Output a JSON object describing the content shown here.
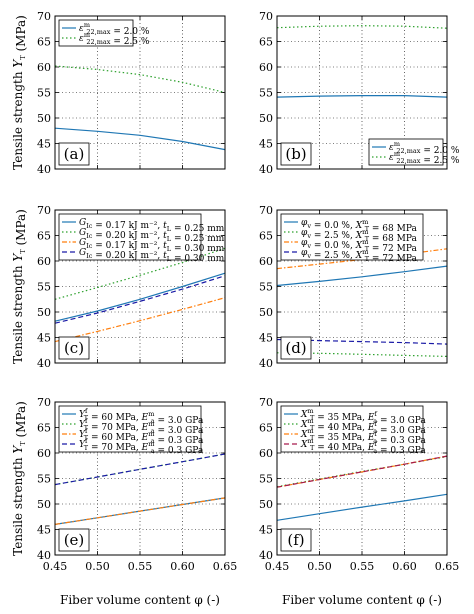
{
  "figure": {
    "ylabel": "Tensile strength Y_T (MPa)",
    "xlabel": "Fiber volume content φ (-)"
  },
  "chart_data": [
    {
      "panel": "(a)",
      "type": "line",
      "xlim": [
        0.45,
        0.65
      ],
      "ylim": [
        40,
        70
      ],
      "xticks": [
        "0.45",
        "0.50",
        "0.55",
        "0.60",
        "0.65"
      ],
      "yticks": [
        "40",
        "45",
        "50",
        "55",
        "60",
        "65",
        "70"
      ],
      "grid": true,
      "legend_position": "top-left",
      "series": [
        {
          "name": "ε^m_22,max = 2.0 %",
          "color": "#1f77b4",
          "dash": "solid",
          "x": [
            0.45,
            0.5,
            0.55,
            0.6,
            0.65
          ],
          "y": [
            48.0,
            47.4,
            46.6,
            45.4,
            43.8
          ]
        },
        {
          "name": "ε^m_22,max = 2.5 %",
          "color": "#2ca02c",
          "dash": "dotted",
          "x": [
            0.45,
            0.5,
            0.55,
            0.6,
            0.65
          ],
          "y": [
            60.2,
            59.5,
            58.5,
            57.0,
            55.0
          ]
        }
      ]
    },
    {
      "panel": "(b)",
      "type": "line",
      "xlim": [
        0.45,
        0.65
      ],
      "ylim": [
        40,
        70
      ],
      "xticks": [
        "0.45",
        "0.50",
        "0.55",
        "0.60",
        "0.65"
      ],
      "yticks": [
        "40",
        "45",
        "50",
        "55",
        "60",
        "65",
        "70"
      ],
      "grid": true,
      "legend_position": "bottom-right",
      "series": [
        {
          "name": "ε^m_22,max = 2.0 %",
          "color": "#1f77b4",
          "dash": "solid",
          "x": [
            0.45,
            0.5,
            0.55,
            0.6,
            0.65
          ],
          "y": [
            54.1,
            54.3,
            54.4,
            54.4,
            54.1
          ]
        },
        {
          "name": "ε^m_22,max = 2.5 %",
          "color": "#2ca02c",
          "dash": "dotted",
          "x": [
            0.45,
            0.5,
            0.55,
            0.6,
            0.65
          ],
          "y": [
            67.7,
            68.0,
            68.1,
            68.0,
            67.6
          ]
        }
      ]
    },
    {
      "panel": "(c)",
      "type": "line",
      "xlim": [
        0.45,
        0.65
      ],
      "ylim": [
        40,
        70
      ],
      "xticks": [
        "0.45",
        "0.50",
        "0.55",
        "0.60",
        "0.65"
      ],
      "yticks": [
        "40",
        "45",
        "50",
        "55",
        "60",
        "65",
        "70"
      ],
      "grid": true,
      "legend_position": "top-left",
      "series": [
        {
          "name": "G_Ic = 0.17 kJ m⁻², t_L = 0.25 mm",
          "color": "#1f77b4",
          "dash": "solid",
          "x": [
            0.45,
            0.5,
            0.55,
            0.6,
            0.65
          ],
          "y": [
            48.2,
            50.2,
            52.5,
            55.0,
            57.6
          ]
        },
        {
          "name": "G_Ic = 0.20 kJ m⁻², t_L = 0.25 mm",
          "color": "#2ca02c",
          "dash": "dotted",
          "x": [
            0.45,
            0.5,
            0.55,
            0.6,
            0.65
          ],
          "y": [
            52.5,
            54.8,
            57.2,
            59.7,
            62.5
          ]
        },
        {
          "name": "G_Ic = 0.17 kJ m⁻², t_L = 0.30 mm",
          "color": "#ff7f0e",
          "dash": "dashdot",
          "x": [
            0.45,
            0.5,
            0.55,
            0.6,
            0.65
          ],
          "y": [
            44.2,
            46.2,
            48.3,
            50.5,
            52.8
          ]
        },
        {
          "name": "G_Ic = 0.20 kJ m⁻², t_L = 0.30 mm",
          "color": "#1a1aa6",
          "dash": "dashed",
          "x": [
            0.45,
            0.5,
            0.55,
            0.6,
            0.65
          ],
          "y": [
            47.8,
            49.8,
            52.1,
            54.5,
            57.1
          ]
        }
      ]
    },
    {
      "panel": "(d)",
      "type": "line",
      "xlim": [
        0.45,
        0.65
      ],
      "ylim": [
        40,
        70
      ],
      "xticks": [
        "0.45",
        "0.50",
        "0.55",
        "0.60",
        "0.65"
      ],
      "yticks": [
        "40",
        "45",
        "50",
        "55",
        "60",
        "65",
        "70"
      ],
      "grid": true,
      "legend_position": "top-left",
      "series": [
        {
          "name": "φ_v = 0.0 %, X^m_T = 68 MPa",
          "color": "#1f77b4",
          "dash": "solid",
          "x": [
            0.45,
            0.5,
            0.55,
            0.6,
            0.65
          ],
          "y": [
            55.2,
            56.0,
            56.9,
            57.9,
            59.0
          ]
        },
        {
          "name": "φ_v = 2.5 %, X^m_T = 68 MPa",
          "color": "#2ca02c",
          "dash": "dotted",
          "x": [
            0.45,
            0.5,
            0.55,
            0.6,
            0.65
          ],
          "y": [
            42.0,
            41.9,
            41.7,
            41.5,
            41.3
          ]
        },
        {
          "name": "φ_v = 0.0 %, X^m_T = 72 MPa",
          "color": "#ff7f0e",
          "dash": "dashdot",
          "x": [
            0.45,
            0.5,
            0.55,
            0.6,
            0.65
          ],
          "y": [
            58.5,
            59.4,
            60.3,
            61.3,
            62.4
          ]
        },
        {
          "name": "φ_v = 2.5 %, X^m_T = 72 MPa",
          "color": "#1a1aa6",
          "dash": "dashed",
          "x": [
            0.45,
            0.5,
            0.55,
            0.6,
            0.65
          ],
          "y": [
            44.6,
            44.4,
            44.2,
            44.0,
            43.7
          ]
        }
      ]
    },
    {
      "panel": "(e)",
      "type": "line",
      "xlim": [
        0.45,
        0.65
      ],
      "ylim": [
        40,
        70
      ],
      "xticks": [
        "0.45",
        "0.50",
        "0.55",
        "0.60",
        "0.65"
      ],
      "yticks": [
        "40",
        "45",
        "50",
        "55",
        "60",
        "65",
        "70"
      ],
      "grid": true,
      "legend_position": "top-left",
      "series": [
        {
          "name": "Y^f_T = 60 MPa, E^m_a = 3.0 GPa",
          "color": "#1f77b4",
          "dash": "solid",
          "x": [
            0.45,
            0.5,
            0.55,
            0.6,
            0.65
          ],
          "y": [
            46.0,
            47.3,
            48.6,
            49.9,
            51.2
          ]
        },
        {
          "name": "Y^f_T = 70 MPa, E^m_a = 3.0 GPa",
          "color": "#2ca02c",
          "dash": "dotted",
          "x": [
            0.45,
            0.5,
            0.55,
            0.6,
            0.65
          ],
          "y": [
            53.8,
            55.3,
            56.8,
            58.3,
            59.8
          ]
        },
        {
          "name": "Y^f_T = 60 MPa, E^m_a = 0.3 GPa",
          "color": "#ff7f0e",
          "dash": "dashdot",
          "x": [
            0.45,
            0.5,
            0.55,
            0.6,
            0.65
          ],
          "y": [
            46.0,
            47.3,
            48.6,
            49.9,
            51.2
          ]
        },
        {
          "name": "Y^f_T = 70 MPa, E^m_a = 0.3 GPa",
          "color": "#1a1aa6",
          "dash": "dashed",
          "x": [
            0.45,
            0.5,
            0.55,
            0.6,
            0.65
          ],
          "y": [
            53.8,
            55.3,
            56.8,
            58.3,
            59.8
          ]
        }
      ]
    },
    {
      "panel": "(f)",
      "type": "line",
      "xlim": [
        0.45,
        0.65
      ],
      "ylim": [
        40,
        70
      ],
      "xticks": [
        "0.45",
        "0.50",
        "0.55",
        "0.60",
        "0.65"
      ],
      "yticks": [
        "40",
        "45",
        "50",
        "55",
        "60",
        "65",
        "70"
      ],
      "grid": true,
      "legend_position": "top-left",
      "series": [
        {
          "name": "X^m_T = 35 MPa, E^f_a = 3.0 GPa",
          "color": "#1f77b4",
          "dash": "solid",
          "x": [
            0.45,
            0.5,
            0.55,
            0.6,
            0.65
          ],
          "y": [
            46.8,
            48.1,
            49.4,
            50.6,
            51.9
          ]
        },
        {
          "name": "X^m_T = 40 MPa, E^f_a = 3.0 GPa",
          "color": "#2ca02c",
          "dash": "dotted",
          "x": [
            0.45,
            0.5,
            0.55,
            0.6,
            0.65
          ],
          "y": [
            53.4,
            54.9,
            56.4,
            57.8,
            59.3
          ]
        },
        {
          "name": "X^m_T = 35 MPa, E^f_a = 0.3 GPa",
          "color": "#ff7f0e",
          "dash": "dashdot",
          "x": [
            0.45,
            0.5,
            0.55,
            0.6,
            0.65
          ],
          "y": [
            53.3,
            54.8,
            56.3,
            57.8,
            59.4
          ]
        },
        {
          "name": "X^m_T = 40 MPa, E^f_a = 0.3 GPa",
          "color": "#a61a4d",
          "dash": "dashed",
          "x": [
            0.45,
            0.5,
            0.55,
            0.6,
            0.65
          ],
          "y": [
            53.3,
            54.8,
            56.3,
            57.8,
            59.4
          ]
        }
      ]
    }
  ]
}
